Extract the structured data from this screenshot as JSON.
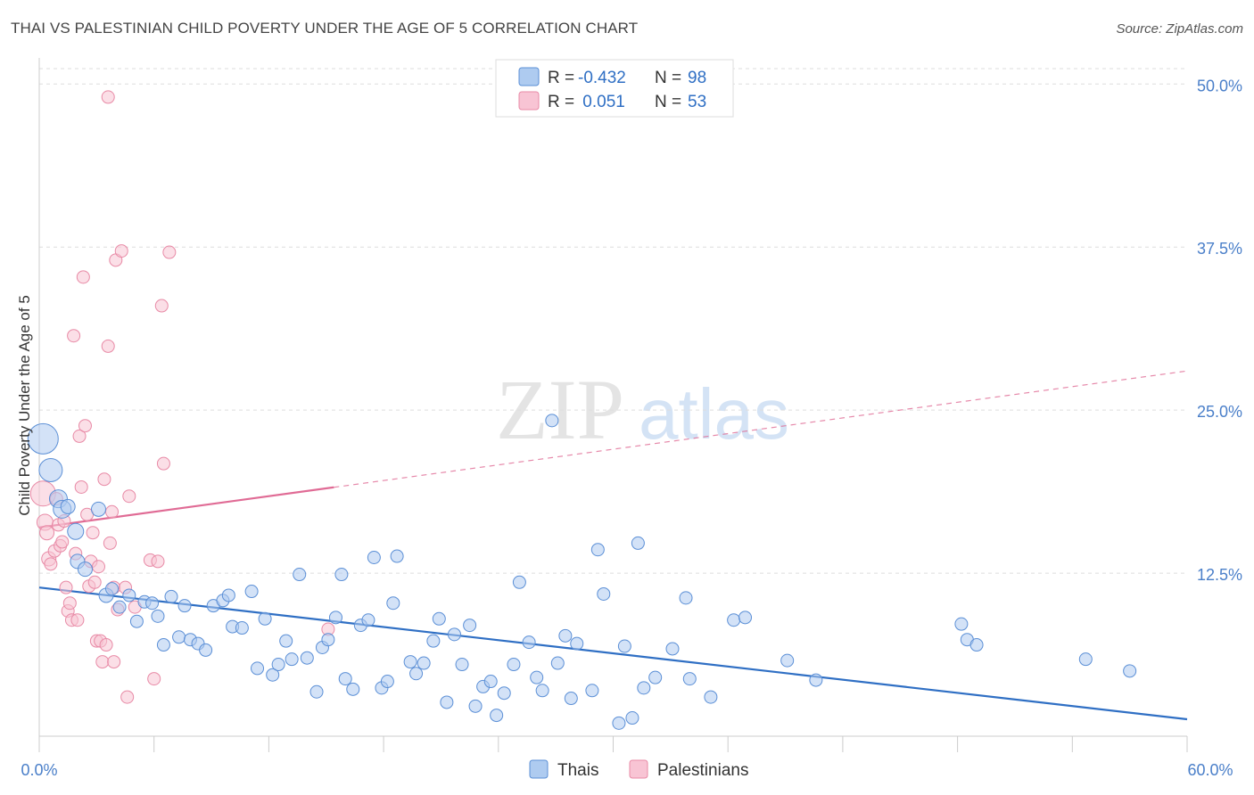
{
  "title": "THAI VS PALESTINIAN CHILD POVERTY UNDER THE AGE OF 5 CORRELATION CHART",
  "source": "Source: ZipAtlas.com",
  "watermark": {
    "zip": "ZIP",
    "atlas": "atlas"
  },
  "colors": {
    "thai_fill": "#aecbf0",
    "thai_stroke": "#5b8fd6",
    "thai_line": "#2f6fc4",
    "pal_fill": "#f8c4d4",
    "pal_stroke": "#e88aa6",
    "pal_line": "#e06b95",
    "grid": "#dddddd",
    "tick_text": "#4a7fc9"
  },
  "legend": {
    "rows": [
      {
        "r_label": "R =",
        "r_value": "-0.432",
        "n_label": "N =",
        "n_value": "98"
      },
      {
        "r_label": "R =",
        "r_value": " 0.051",
        "n_label": "N =",
        "n_value": "53"
      }
    ]
  },
  "chart_data": {
    "type": "scatter",
    "xlabel": "",
    "ylabel": "Child Poverty Under the Age of 5",
    "xlim": [
      0,
      60
    ],
    "ylim": [
      0,
      52
    ],
    "x_tick_labels": [
      "0.0%",
      "60.0%"
    ],
    "y_ticks": [
      12.5,
      25.0,
      37.5,
      50.0
    ],
    "y_tick_labels": [
      "12.5%",
      "25.0%",
      "37.5%",
      "50.0%"
    ],
    "grid": true,
    "legend_position": "top-center",
    "series": [
      {
        "name": "Thais",
        "trend": {
          "x": [
            0,
            60
          ],
          "y": [
            11.4,
            1.3
          ],
          "style": "solid"
        },
        "points": [
          [
            0.2,
            22.8,
            1.7
          ],
          [
            0.6,
            20.4,
            1.3
          ],
          [
            1.0,
            18.2,
            1.0
          ],
          [
            1.2,
            17.4,
            1.0
          ],
          [
            1.5,
            17.6,
            0.8
          ],
          [
            1.9,
            15.7,
            0.9
          ],
          [
            2.0,
            13.4,
            0.8
          ],
          [
            2.4,
            12.8,
            0.8
          ],
          [
            3.1,
            17.4,
            0.8
          ],
          [
            3.5,
            10.8,
            0.8
          ],
          [
            3.8,
            11.3,
            0.7
          ],
          [
            4.2,
            9.9,
            0.7
          ],
          [
            4.7,
            10.8,
            0.7
          ],
          [
            5.1,
            8.8,
            0.7
          ],
          [
            5.5,
            10.3,
            0.7
          ],
          [
            5.9,
            10.2,
            0.7
          ],
          [
            6.2,
            9.2,
            0.7
          ],
          [
            6.5,
            7.0,
            0.7
          ],
          [
            6.9,
            10.7,
            0.7
          ],
          [
            7.3,
            7.6,
            0.7
          ],
          [
            7.6,
            10.0,
            0.7
          ],
          [
            7.9,
            7.4,
            0.7
          ],
          [
            8.3,
            7.1,
            0.7
          ],
          [
            8.7,
            6.6,
            0.7
          ],
          [
            9.1,
            10.0,
            0.7
          ],
          [
            9.6,
            10.4,
            0.7
          ],
          [
            9.9,
            10.8,
            0.7
          ],
          [
            10.1,
            8.4,
            0.7
          ],
          [
            10.6,
            8.3,
            0.7
          ],
          [
            11.1,
            11.1,
            0.7
          ],
          [
            11.4,
            5.2,
            0.7
          ],
          [
            11.8,
            9.0,
            0.7
          ],
          [
            12.2,
            4.7,
            0.7
          ],
          [
            12.5,
            5.5,
            0.7
          ],
          [
            12.9,
            7.3,
            0.7
          ],
          [
            13.2,
            5.9,
            0.7
          ],
          [
            13.6,
            12.4,
            0.7
          ],
          [
            14.0,
            6.0,
            0.7
          ],
          [
            14.5,
            3.4,
            0.7
          ],
          [
            14.8,
            6.8,
            0.7
          ],
          [
            15.1,
            7.4,
            0.7
          ],
          [
            15.5,
            9.1,
            0.7
          ],
          [
            15.8,
            12.4,
            0.7
          ],
          [
            16.0,
            4.4,
            0.7
          ],
          [
            16.4,
            3.6,
            0.7
          ],
          [
            16.8,
            8.5,
            0.7
          ],
          [
            17.2,
            8.9,
            0.7
          ],
          [
            17.5,
            13.7,
            0.7
          ],
          [
            17.9,
            3.7,
            0.7
          ],
          [
            18.2,
            4.2,
            0.7
          ],
          [
            18.5,
            10.2,
            0.7
          ],
          [
            18.7,
            13.8,
            0.7
          ],
          [
            19.4,
            5.7,
            0.7
          ],
          [
            19.7,
            4.8,
            0.7
          ],
          [
            20.1,
            5.6,
            0.7
          ],
          [
            20.6,
            7.3,
            0.7
          ],
          [
            20.9,
            9.0,
            0.7
          ],
          [
            21.3,
            2.6,
            0.7
          ],
          [
            21.7,
            7.8,
            0.7
          ],
          [
            22.1,
            5.5,
            0.7
          ],
          [
            22.5,
            8.5,
            0.7
          ],
          [
            22.8,
            2.3,
            0.7
          ],
          [
            23.2,
            3.8,
            0.7
          ],
          [
            23.6,
            4.2,
            0.7
          ],
          [
            23.9,
            1.6,
            0.7
          ],
          [
            24.3,
            3.3,
            0.7
          ],
          [
            24.8,
            5.5,
            0.7
          ],
          [
            25.1,
            11.8,
            0.7
          ],
          [
            25.6,
            7.2,
            0.7
          ],
          [
            26.0,
            4.5,
            0.7
          ],
          [
            26.3,
            3.5,
            0.7
          ],
          [
            26.8,
            24.2,
            0.7
          ],
          [
            27.1,
            5.6,
            0.7
          ],
          [
            27.5,
            7.7,
            0.7
          ],
          [
            27.8,
            2.9,
            0.7
          ],
          [
            28.1,
            7.1,
            0.7
          ],
          [
            28.9,
            3.5,
            0.7
          ],
          [
            29.2,
            14.3,
            0.7
          ],
          [
            29.5,
            10.9,
            0.7
          ],
          [
            30.3,
            1.0,
            0.7
          ],
          [
            30.6,
            6.9,
            0.7
          ],
          [
            31.0,
            1.4,
            0.7
          ],
          [
            31.3,
            14.8,
            0.7
          ],
          [
            31.6,
            3.7,
            0.7
          ],
          [
            32.2,
            4.5,
            0.7
          ],
          [
            33.1,
            6.7,
            0.7
          ],
          [
            33.8,
            10.6,
            0.7
          ],
          [
            34.0,
            4.4,
            0.7
          ],
          [
            35.1,
            3.0,
            0.7
          ],
          [
            36.3,
            8.9,
            0.7
          ],
          [
            36.9,
            9.1,
            0.7
          ],
          [
            39.1,
            5.8,
            0.7
          ],
          [
            40.6,
            4.3,
            0.7
          ],
          [
            48.2,
            8.6,
            0.7
          ],
          [
            48.5,
            7.4,
            0.7
          ],
          [
            49.0,
            7.0,
            0.7
          ],
          [
            54.7,
            5.9,
            0.7
          ],
          [
            57.0,
            5.0,
            0.7
          ]
        ]
      },
      {
        "name": "Palestinians",
        "trend": {
          "x": [
            0,
            60
          ],
          "y": [
            16.0,
            28.0
          ],
          "solid_until": 15.4,
          "style": "solid-then-dashed"
        },
        "points": [
          [
            0.2,
            18.6,
            1.4
          ],
          [
            0.3,
            16.4,
            0.9
          ],
          [
            0.4,
            15.6,
            0.8
          ],
          [
            0.5,
            13.6,
            0.8
          ],
          [
            0.6,
            13.2,
            0.7
          ],
          [
            0.8,
            14.2,
            0.7
          ],
          [
            0.9,
            18.2,
            0.7
          ],
          [
            1.0,
            16.2,
            0.7
          ],
          [
            1.1,
            14.6,
            0.7
          ],
          [
            1.2,
            14.9,
            0.7
          ],
          [
            1.3,
            16.5,
            0.7
          ],
          [
            1.4,
            11.4,
            0.7
          ],
          [
            1.5,
            9.6,
            0.7
          ],
          [
            1.6,
            10.2,
            0.7
          ],
          [
            1.7,
            8.9,
            0.7
          ],
          [
            1.8,
            30.7,
            0.7
          ],
          [
            1.9,
            14.0,
            0.7
          ],
          [
            2.0,
            8.9,
            0.7
          ],
          [
            2.1,
            23.0,
            0.7
          ],
          [
            2.2,
            19.1,
            0.7
          ],
          [
            2.3,
            35.2,
            0.7
          ],
          [
            2.4,
            23.8,
            0.7
          ],
          [
            2.5,
            17.0,
            0.7
          ],
          [
            2.6,
            11.5,
            0.7
          ],
          [
            2.7,
            13.4,
            0.7
          ],
          [
            2.8,
            15.6,
            0.7
          ],
          [
            2.9,
            11.8,
            0.7
          ],
          [
            3.0,
            7.3,
            0.7
          ],
          [
            3.1,
            13.0,
            0.7
          ],
          [
            3.2,
            7.3,
            0.7
          ],
          [
            3.3,
            5.7,
            0.7
          ],
          [
            3.4,
            19.7,
            0.7
          ],
          [
            3.5,
            7.0,
            0.7
          ],
          [
            3.6,
            29.9,
            0.7
          ],
          [
            3.7,
            14.8,
            0.7
          ],
          [
            3.9,
            11.4,
            0.7
          ],
          [
            3.6,
            49.0,
            0.7
          ],
          [
            3.8,
            17.2,
            0.7
          ],
          [
            3.9,
            5.7,
            0.7
          ],
          [
            4.0,
            36.5,
            0.7
          ],
          [
            4.1,
            9.7,
            0.7
          ],
          [
            4.3,
            37.2,
            0.7
          ],
          [
            4.5,
            11.4,
            0.7
          ],
          [
            4.6,
            3.0,
            0.7
          ],
          [
            4.7,
            18.4,
            0.7
          ],
          [
            5.0,
            9.9,
            0.7
          ],
          [
            5.8,
            13.5,
            0.7
          ],
          [
            6.0,
            4.4,
            0.7
          ],
          [
            6.2,
            13.4,
            0.7
          ],
          [
            6.4,
            33.0,
            0.7
          ],
          [
            6.5,
            20.9,
            0.7
          ],
          [
            6.8,
            37.1,
            0.7
          ],
          [
            15.1,
            8.2,
            0.7
          ]
        ]
      }
    ]
  },
  "bottom_legend": [
    {
      "label": "Thais"
    },
    {
      "label": "Palestinians"
    }
  ]
}
